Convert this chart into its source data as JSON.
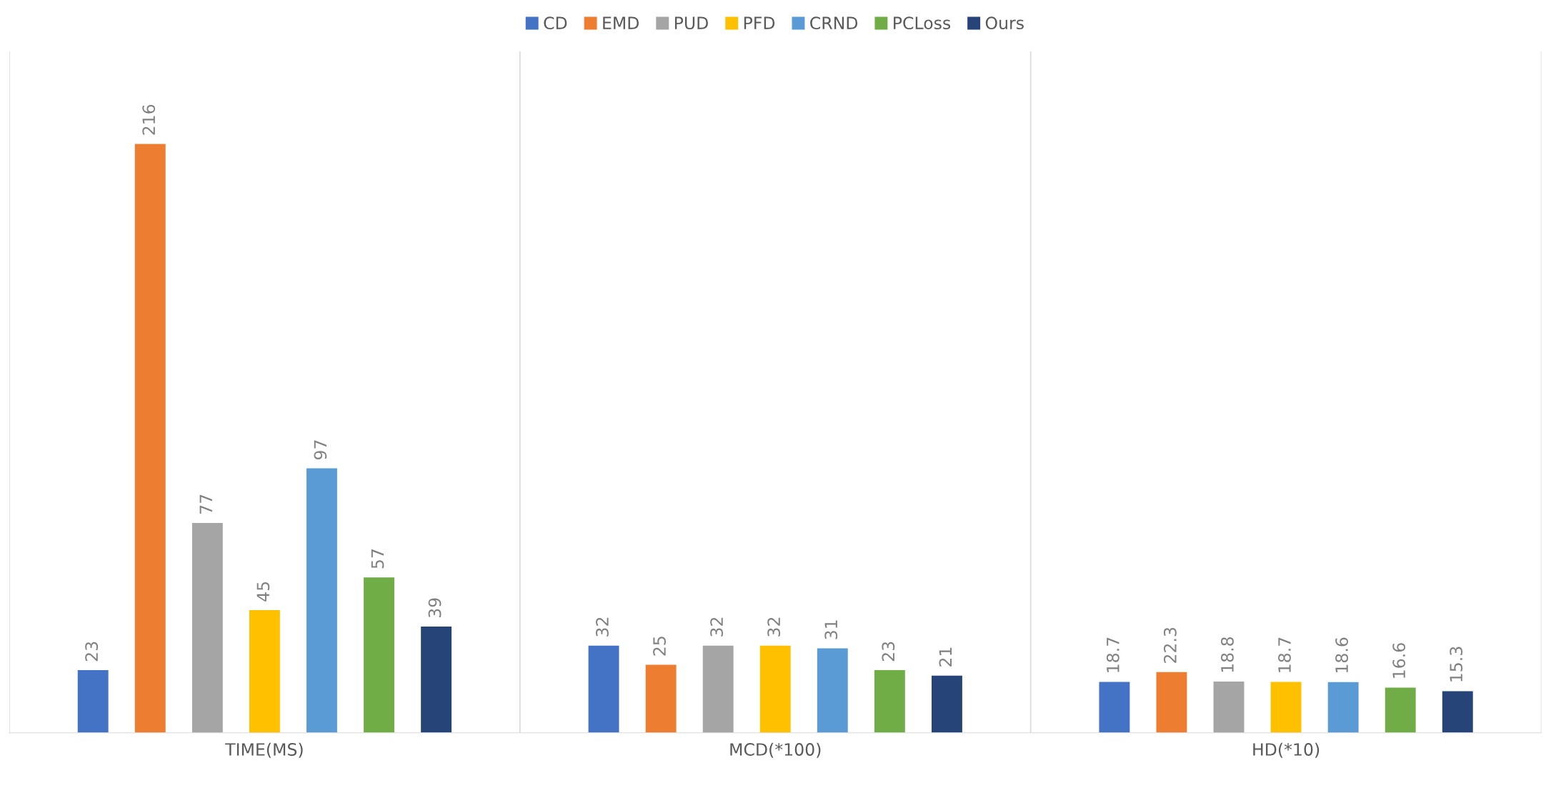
{
  "chart_data": {
    "type": "bar",
    "categories": [
      "TIME(MS)",
      "MCD(*100)",
      "HD(*10)"
    ],
    "series": [
      {
        "name": "CD",
        "color": "#4472c4",
        "values": [
          23,
          32,
          18.7
        ]
      },
      {
        "name": "EMD",
        "color": "#ed7d31",
        "values": [
          216,
          25,
          22.3
        ]
      },
      {
        "name": "PUD",
        "color": "#a5a5a5",
        "values": [
          77,
          32,
          18.8
        ]
      },
      {
        "name": "PFD",
        "color": "#ffc000",
        "values": [
          45,
          32,
          18.7
        ]
      },
      {
        "name": "CRND",
        "color": "#5b9bd5",
        "values": [
          97,
          31,
          18.6
        ]
      },
      {
        "name": "PCLoss",
        "color": "#70ad47",
        "values": [
          57,
          23,
          16.6
        ]
      },
      {
        "name": "Ours",
        "color": "#264478",
        "values": [
          39,
          21,
          15.3
        ]
      }
    ],
    "ylim": [
      0,
      250
    ],
    "data_labels": true,
    "legend": "top",
    "grid": "x",
    "tick_labels": "x"
  }
}
